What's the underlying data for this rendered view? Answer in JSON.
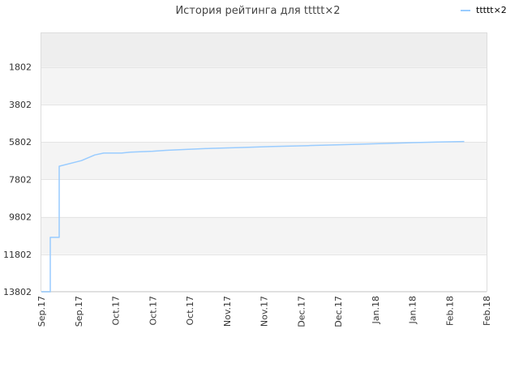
{
  "chart_data": {
    "type": "line",
    "title": "История рейтинга для ttttt×2",
    "xlabel": "",
    "ylabel": "",
    "y_axis_inverted": true,
    "ylim": [
      0,
      13802
    ],
    "y_ticks": [
      "1802",
      "3802",
      "5802",
      "7802",
      "9802",
      "11802",
      "13802"
    ],
    "y_tick_values": [
      1802,
      3802,
      5802,
      7802,
      9802,
      11802,
      13802
    ],
    "x_ticks": [
      "Sep.17",
      "Sep.17",
      "Oct.17",
      "Oct.17",
      "Oct.17",
      "Nov.17",
      "Nov.17",
      "Dec.17",
      "Dec.17",
      "Jan.18",
      "Jan.18",
      "Feb.18",
      "Feb.18"
    ],
    "grid": true,
    "band_colors": [
      "#eeeeee",
      "#f4f4f4",
      "#ffffff"
    ],
    "legend_position": "top-right",
    "series": [
      {
        "name": "ttttt×2",
        "color": "#99ccff",
        "x_start": "Sep.17",
        "x_end": "Feb.18",
        "x": [
          0,
          0.02,
          0.02,
          0.04,
          0.04,
          0.09,
          0.12,
          0.14,
          0.18,
          0.2,
          0.25,
          0.28,
          0.33,
          0.38,
          0.45,
          0.52,
          0.6,
          0.68,
          0.75,
          0.82,
          0.9,
          0.95
        ],
        "values": [
          13802,
          13802,
          10900,
          10900,
          7100,
          6800,
          6500,
          6400,
          6400,
          6350,
          6300,
          6250,
          6200,
          6150,
          6100,
          6050,
          6000,
          5950,
          5900,
          5850,
          5800,
          5780
        ]
      }
    ]
  }
}
